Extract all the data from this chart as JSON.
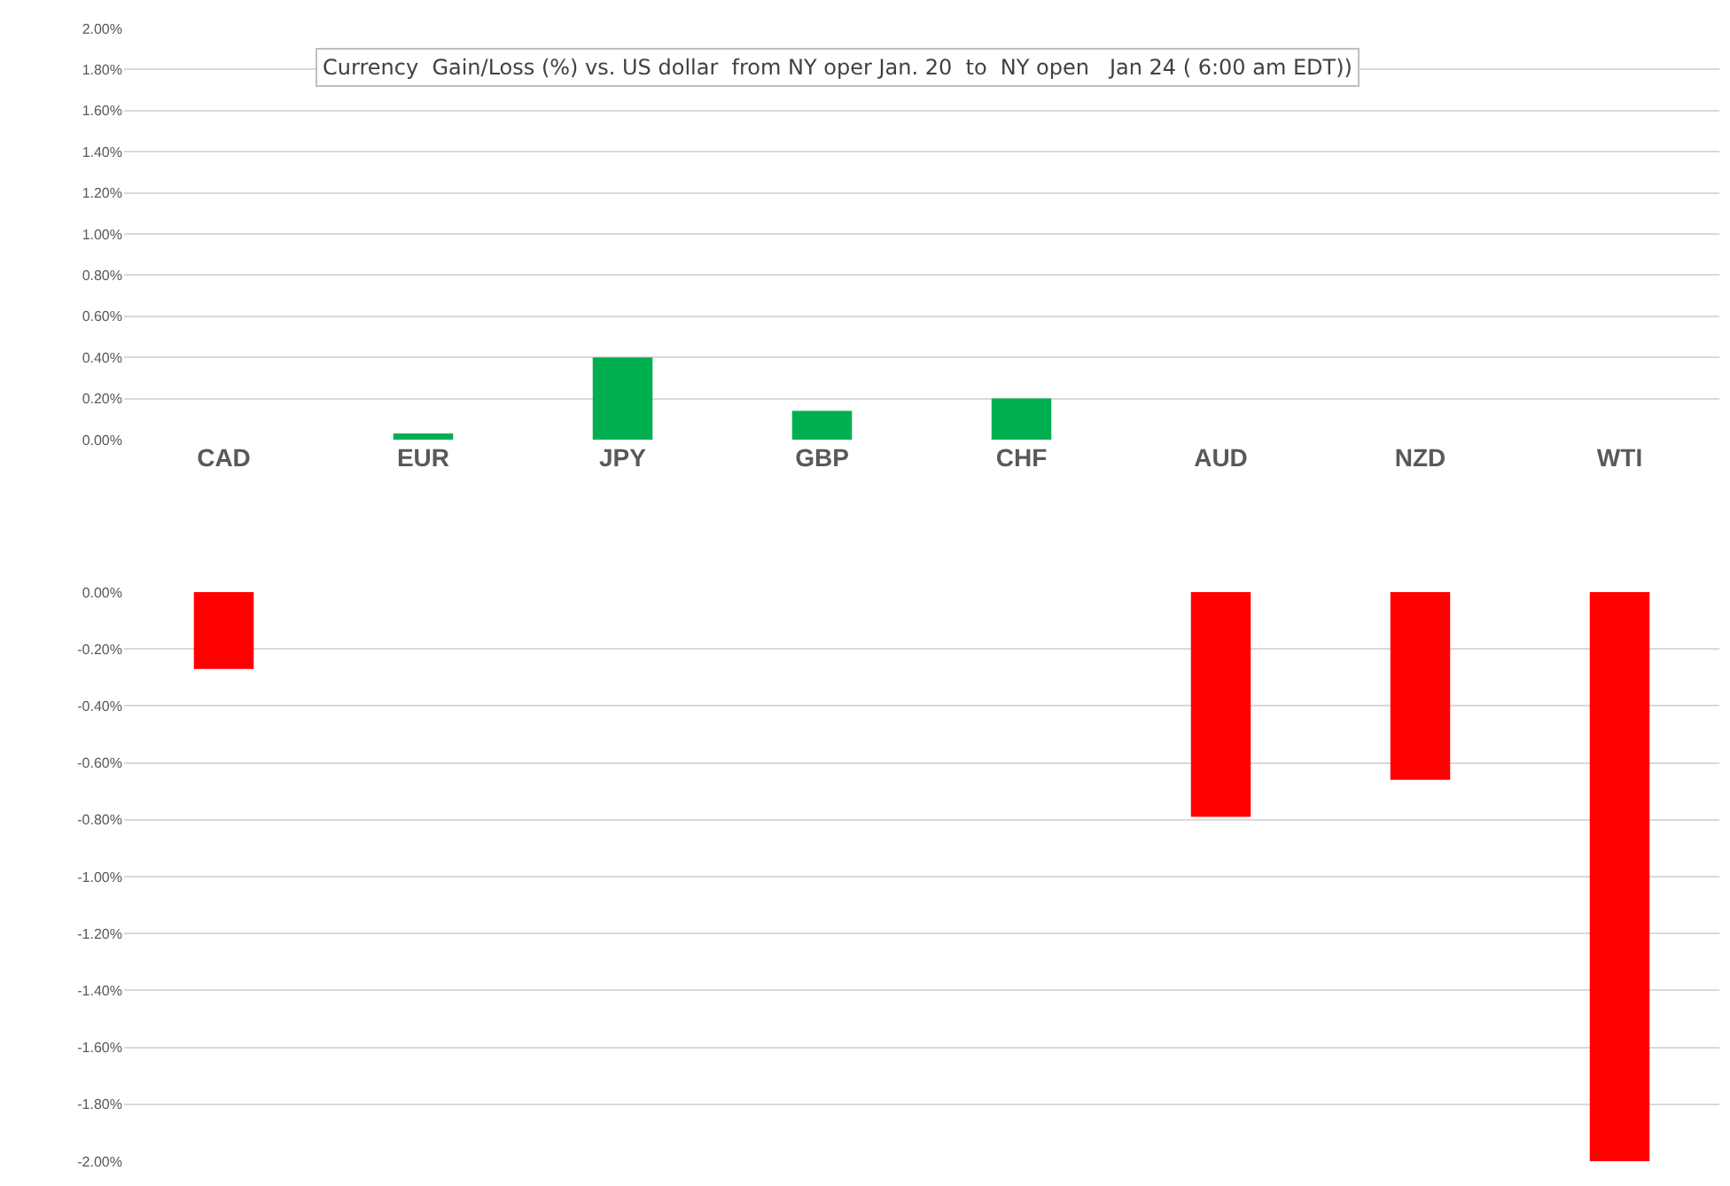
{
  "chart_data": [
    {
      "type": "bar",
      "title": "Currency  Gain/Loss (%) vs. US dollar  from NY oper Jan. 20  to  NY open   Jan 24 ( 6:00 am EDT))",
      "categories": [
        "CAD",
        "EUR",
        "JPY",
        "GBP",
        "CHF",
        "AUD",
        "NZD",
        "WTI"
      ],
      "values": [
        null,
        0.03,
        0.4,
        0.14,
        0.2,
        null,
        null,
        null
      ],
      "color": "#00b050",
      "ylim": [
        0,
        2
      ],
      "yticks": [
        {
          "value": 0,
          "label": "0.00%"
        },
        {
          "value": 0.2,
          "label": "0.20%"
        },
        {
          "value": 0.4,
          "label": "0.40%"
        },
        {
          "value": 0.6,
          "label": "0.60%"
        },
        {
          "value": 0.8,
          "label": "0.80%"
        },
        {
          "value": 1,
          "label": "1.00%"
        },
        {
          "value": 1.2,
          "label": "1.20%"
        },
        {
          "value": 1.4,
          "label": "1.40%"
        },
        {
          "value": 1.6,
          "label": "1.60%"
        },
        {
          "value": 1.8,
          "label": "1.80%"
        },
        {
          "value": 2,
          "label": "2.00%"
        }
      ],
      "grid": "y"
    },
    {
      "type": "bar",
      "categories": [
        null,
        null,
        null,
        null,
        null,
        null,
        null,
        null
      ],
      "values": [
        -0.27,
        null,
        null,
        null,
        null,
        -0.79,
        -0.66,
        -2
      ],
      "color": "#ff0000",
      "ylim": [
        -2,
        0
      ],
      "yticks": [
        {
          "value": 0,
          "label": "0.00%"
        },
        {
          "value": -0.2,
          "label": "-0.20%"
        },
        {
          "value": -0.4,
          "label": "-0.40%"
        },
        {
          "value": -0.6,
          "label": "-0.60%"
        },
        {
          "value": -0.8,
          "label": "-0.80%"
        },
        {
          "value": -1,
          "label": "-1.00%"
        },
        {
          "value": -1.2,
          "label": "-1.20%"
        },
        {
          "value": -1.4,
          "label": "-1.40%"
        },
        {
          "value": -1.6,
          "label": "-1.60%"
        },
        {
          "value": -1.8,
          "label": "-1.80%"
        },
        {
          "value": -2,
          "label": "-2.00%"
        }
      ],
      "grid": "y",
      "tick_labels": "y"
    }
  ]
}
